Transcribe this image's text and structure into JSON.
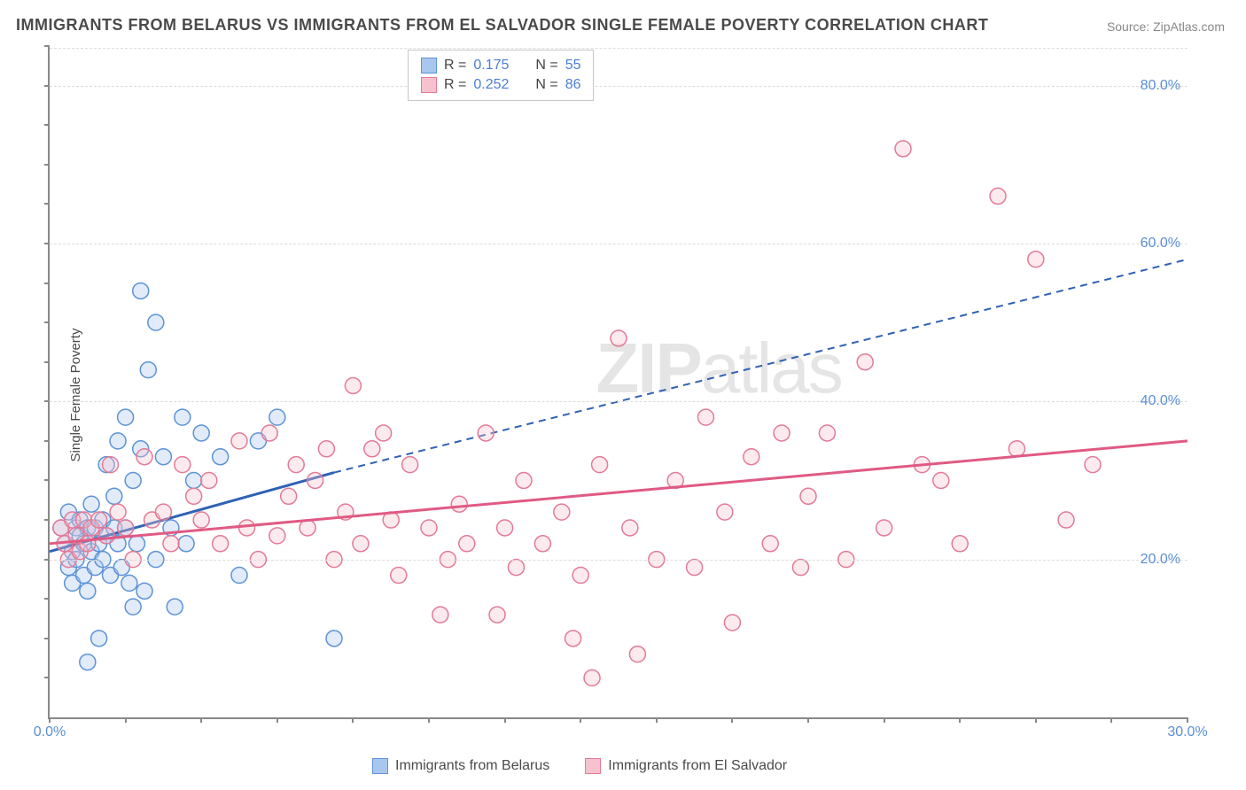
{
  "title": "IMMIGRANTS FROM BELARUS VS IMMIGRANTS FROM EL SALVADOR SINGLE FEMALE POVERTY CORRELATION CHART",
  "source": "Source: ZipAtlas.com",
  "ylabel": "Single Female Poverty",
  "watermark_a": "ZIP",
  "watermark_b": "atlas",
  "chart": {
    "type": "scatter",
    "xlim": [
      0,
      30
    ],
    "ylim": [
      0,
      85
    ],
    "yticks": [
      20,
      40,
      60,
      80
    ],
    "ytick_labels": [
      "20.0%",
      "40.0%",
      "60.0%",
      "80.0%"
    ],
    "xticks": [
      0,
      30
    ],
    "xtick_labels": [
      "0.0%",
      "30.0%"
    ],
    "background_color": "#ffffff",
    "grid_color": "#dcdcdc",
    "axis_color": "#888888",
    "tick_label_color": "#5a8fd6",
    "marker_radius": 9,
    "marker_opacity": 0.35,
    "line_width": 3,
    "dash_pattern": "8,6"
  },
  "series": [
    {
      "name": "Immigrants from Belarus",
      "fill_color": "#a9c7ee",
      "stroke_color": "#5c93d6",
      "line_color": "#2f62b5",
      "R": "0.175",
      "N": "55",
      "trend": {
        "x0": 0,
        "y0": 21,
        "solid_x1": 7.5,
        "solid_y1": 31,
        "dash_x1": 30,
        "dash_y1": 58
      },
      "points": [
        [
          0.3,
          24
        ],
        [
          0.4,
          22
        ],
        [
          0.5,
          19
        ],
        [
          0.5,
          26
        ],
        [
          0.6,
          21
        ],
        [
          0.6,
          17
        ],
        [
          0.7,
          24
        ],
        [
          0.7,
          20
        ],
        [
          0.8,
          23
        ],
        [
          0.8,
          25
        ],
        [
          0.9,
          18
        ],
        [
          0.9,
          22
        ],
        [
          1.0,
          24
        ],
        [
          1.0,
          16
        ],
        [
          1.1,
          21
        ],
        [
          1.1,
          27
        ],
        [
          1.2,
          19
        ],
        [
          1.2,
          24
        ],
        [
          1.3,
          22
        ],
        [
          1.4,
          25
        ],
        [
          1.4,
          20
        ],
        [
          1.5,
          23
        ],
        [
          1.5,
          32
        ],
        [
          1.6,
          18
        ],
        [
          1.7,
          24
        ],
        [
          1.7,
          28
        ],
        [
          1.8,
          22
        ],
        [
          1.8,
          35
        ],
        [
          1.9,
          19
        ],
        [
          2.0,
          24
        ],
        [
          2.0,
          38
        ],
        [
          2.1,
          17
        ],
        [
          2.2,
          14
        ],
        [
          2.2,
          30
        ],
        [
          2.3,
          22
        ],
        [
          2.4,
          34
        ],
        [
          2.4,
          54
        ],
        [
          2.5,
          16
        ],
        [
          2.6,
          44
        ],
        [
          2.8,
          50
        ],
        [
          2.8,
          20
        ],
        [
          3.0,
          33
        ],
        [
          3.2,
          24
        ],
        [
          3.3,
          14
        ],
        [
          3.5,
          38
        ],
        [
          3.6,
          22
        ],
        [
          3.8,
          30
        ],
        [
          4.0,
          36
        ],
        [
          4.5,
          33
        ],
        [
          5.0,
          18
        ],
        [
          5.5,
          35
        ],
        [
          6.0,
          38
        ],
        [
          7.5,
          10
        ],
        [
          1.0,
          7
        ],
        [
          1.3,
          10
        ]
      ]
    },
    {
      "name": "Immigrants from El Salvador",
      "fill_color": "#f5c2ce",
      "stroke_color": "#e47a96",
      "line_color": "#e05a84",
      "R": "0.252",
      "N": "86",
      "trend": {
        "x0": 0,
        "y0": 22,
        "solid_x1": 30,
        "solid_y1": 35,
        "dash_x1": 30,
        "dash_y1": 35
      },
      "points": [
        [
          0.3,
          24
        ],
        [
          0.4,
          22
        ],
        [
          0.5,
          20
        ],
        [
          0.6,
          25
        ],
        [
          0.7,
          23
        ],
        [
          0.8,
          21
        ],
        [
          0.9,
          25
        ],
        [
          1.0,
          22
        ],
        [
          1.1,
          24
        ],
        [
          1.3,
          25
        ],
        [
          1.5,
          23
        ],
        [
          1.6,
          32
        ],
        [
          1.8,
          26
        ],
        [
          2.0,
          24
        ],
        [
          2.2,
          20
        ],
        [
          2.5,
          33
        ],
        [
          2.7,
          25
        ],
        [
          3.0,
          26
        ],
        [
          3.2,
          22
        ],
        [
          3.5,
          32
        ],
        [
          3.8,
          28
        ],
        [
          4.0,
          25
        ],
        [
          4.2,
          30
        ],
        [
          4.5,
          22
        ],
        [
          5.0,
          35
        ],
        [
          5.2,
          24
        ],
        [
          5.5,
          20
        ],
        [
          5.8,
          36
        ],
        [
          6.0,
          23
        ],
        [
          6.3,
          28
        ],
        [
          6.5,
          32
        ],
        [
          6.8,
          24
        ],
        [
          7.0,
          30
        ],
        [
          7.3,
          34
        ],
        [
          7.5,
          20
        ],
        [
          7.8,
          26
        ],
        [
          8.0,
          42
        ],
        [
          8.2,
          22
        ],
        [
          8.5,
          34
        ],
        [
          8.8,
          36
        ],
        [
          9.0,
          25
        ],
        [
          9.2,
          18
        ],
        [
          9.5,
          32
        ],
        [
          10.0,
          24
        ],
        [
          10.3,
          13
        ],
        [
          10.5,
          20
        ],
        [
          10.8,
          27
        ],
        [
          11.0,
          22
        ],
        [
          11.5,
          36
        ],
        [
          11.8,
          13
        ],
        [
          12.0,
          24
        ],
        [
          12.3,
          19
        ],
        [
          12.5,
          30
        ],
        [
          13.0,
          22
        ],
        [
          13.5,
          26
        ],
        [
          13.8,
          10
        ],
        [
          14.0,
          18
        ],
        [
          14.3,
          5
        ],
        [
          14.5,
          32
        ],
        [
          15.0,
          48
        ],
        [
          15.3,
          24
        ],
        [
          15.5,
          8
        ],
        [
          16.0,
          20
        ],
        [
          16.5,
          30
        ],
        [
          17.0,
          19
        ],
        [
          17.3,
          38
        ],
        [
          17.8,
          26
        ],
        [
          18.0,
          12
        ],
        [
          18.5,
          33
        ],
        [
          19.0,
          22
        ],
        [
          19.3,
          36
        ],
        [
          19.8,
          19
        ],
        [
          20.0,
          28
        ],
        [
          20.5,
          36
        ],
        [
          21.0,
          20
        ],
        [
          21.5,
          45
        ],
        [
          22.0,
          24
        ],
        [
          22.5,
          72
        ],
        [
          23.0,
          32
        ],
        [
          23.5,
          30
        ],
        [
          24.0,
          22
        ],
        [
          25.0,
          66
        ],
        [
          25.5,
          34
        ],
        [
          26.0,
          58
        ],
        [
          26.8,
          25
        ],
        [
          27.5,
          32
        ]
      ]
    }
  ],
  "legend_top": {
    "R_label": "R  =",
    "N_label": "N  ="
  },
  "bottom_legend": [
    "Immigrants from Belarus",
    "Immigrants from El Salvador"
  ]
}
